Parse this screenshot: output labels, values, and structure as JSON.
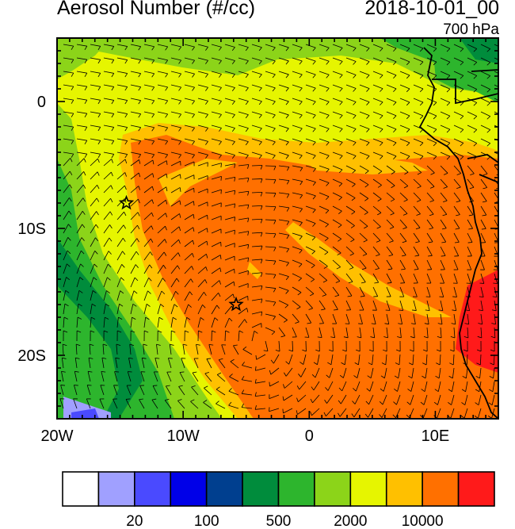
{
  "title": "Aerosol Number (#/cc)",
  "datetime": "2018-10-01_00",
  "level": "700 hPa",
  "map": {
    "lon_range": [
      -20,
      15
    ],
    "lat_range": [
      -25,
      5
    ],
    "x_ticks": [
      {
        "value": -20,
        "label": "20W"
      },
      {
        "value": -10,
        "label": "10W"
      },
      {
        "value": 0,
        "label": "0"
      },
      {
        "value": 10,
        "label": "10E"
      }
    ],
    "y_ticks": [
      {
        "value": 0,
        "label": "0"
      },
      {
        "value": -10,
        "label": "10S"
      },
      {
        "value": -20,
        "label": "20S"
      }
    ],
    "markers": [
      {
        "name": "star-marker-west",
        "lon": -14.5,
        "lat": -8.0
      },
      {
        "name": "star-marker-central",
        "lon": -5.8,
        "lat": -16.0
      }
    ]
  },
  "colorbar": {
    "colors": [
      "#ffffff",
      "#a0a0ff",
      "#4a4aff",
      "#0000e8",
      "#003f8f",
      "#008c3c",
      "#2db52d",
      "#8cd419",
      "#e6f500",
      "#ffc000",
      "#ff7000",
      "#ff1a1a"
    ],
    "labels": [
      {
        "after_box": 2,
        "text": "20"
      },
      {
        "after_box": 4,
        "text": "100"
      },
      {
        "after_box": 6,
        "text": "500"
      },
      {
        "after_box": 8,
        "text": "2000"
      },
      {
        "after_box": 10,
        "text": "10000"
      }
    ]
  }
}
